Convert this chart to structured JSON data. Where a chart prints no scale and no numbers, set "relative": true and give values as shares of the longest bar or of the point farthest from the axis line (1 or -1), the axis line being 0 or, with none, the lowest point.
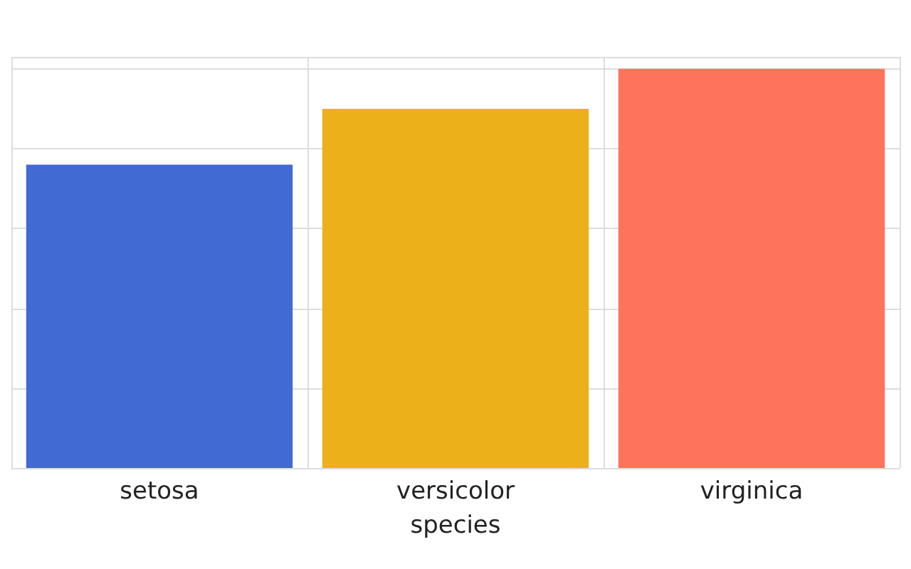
{
  "chart_data": {
    "type": "bar",
    "xlabel": "species",
    "categories": [
      "setosa",
      "versicolor",
      "virginica"
    ],
    "values": [
      0.76,
      0.9,
      1
    ],
    "colors": [
      "#416bd3",
      "#ecb11a",
      "#fe735c"
    ],
    "relative": true,
    "grid": true
  }
}
